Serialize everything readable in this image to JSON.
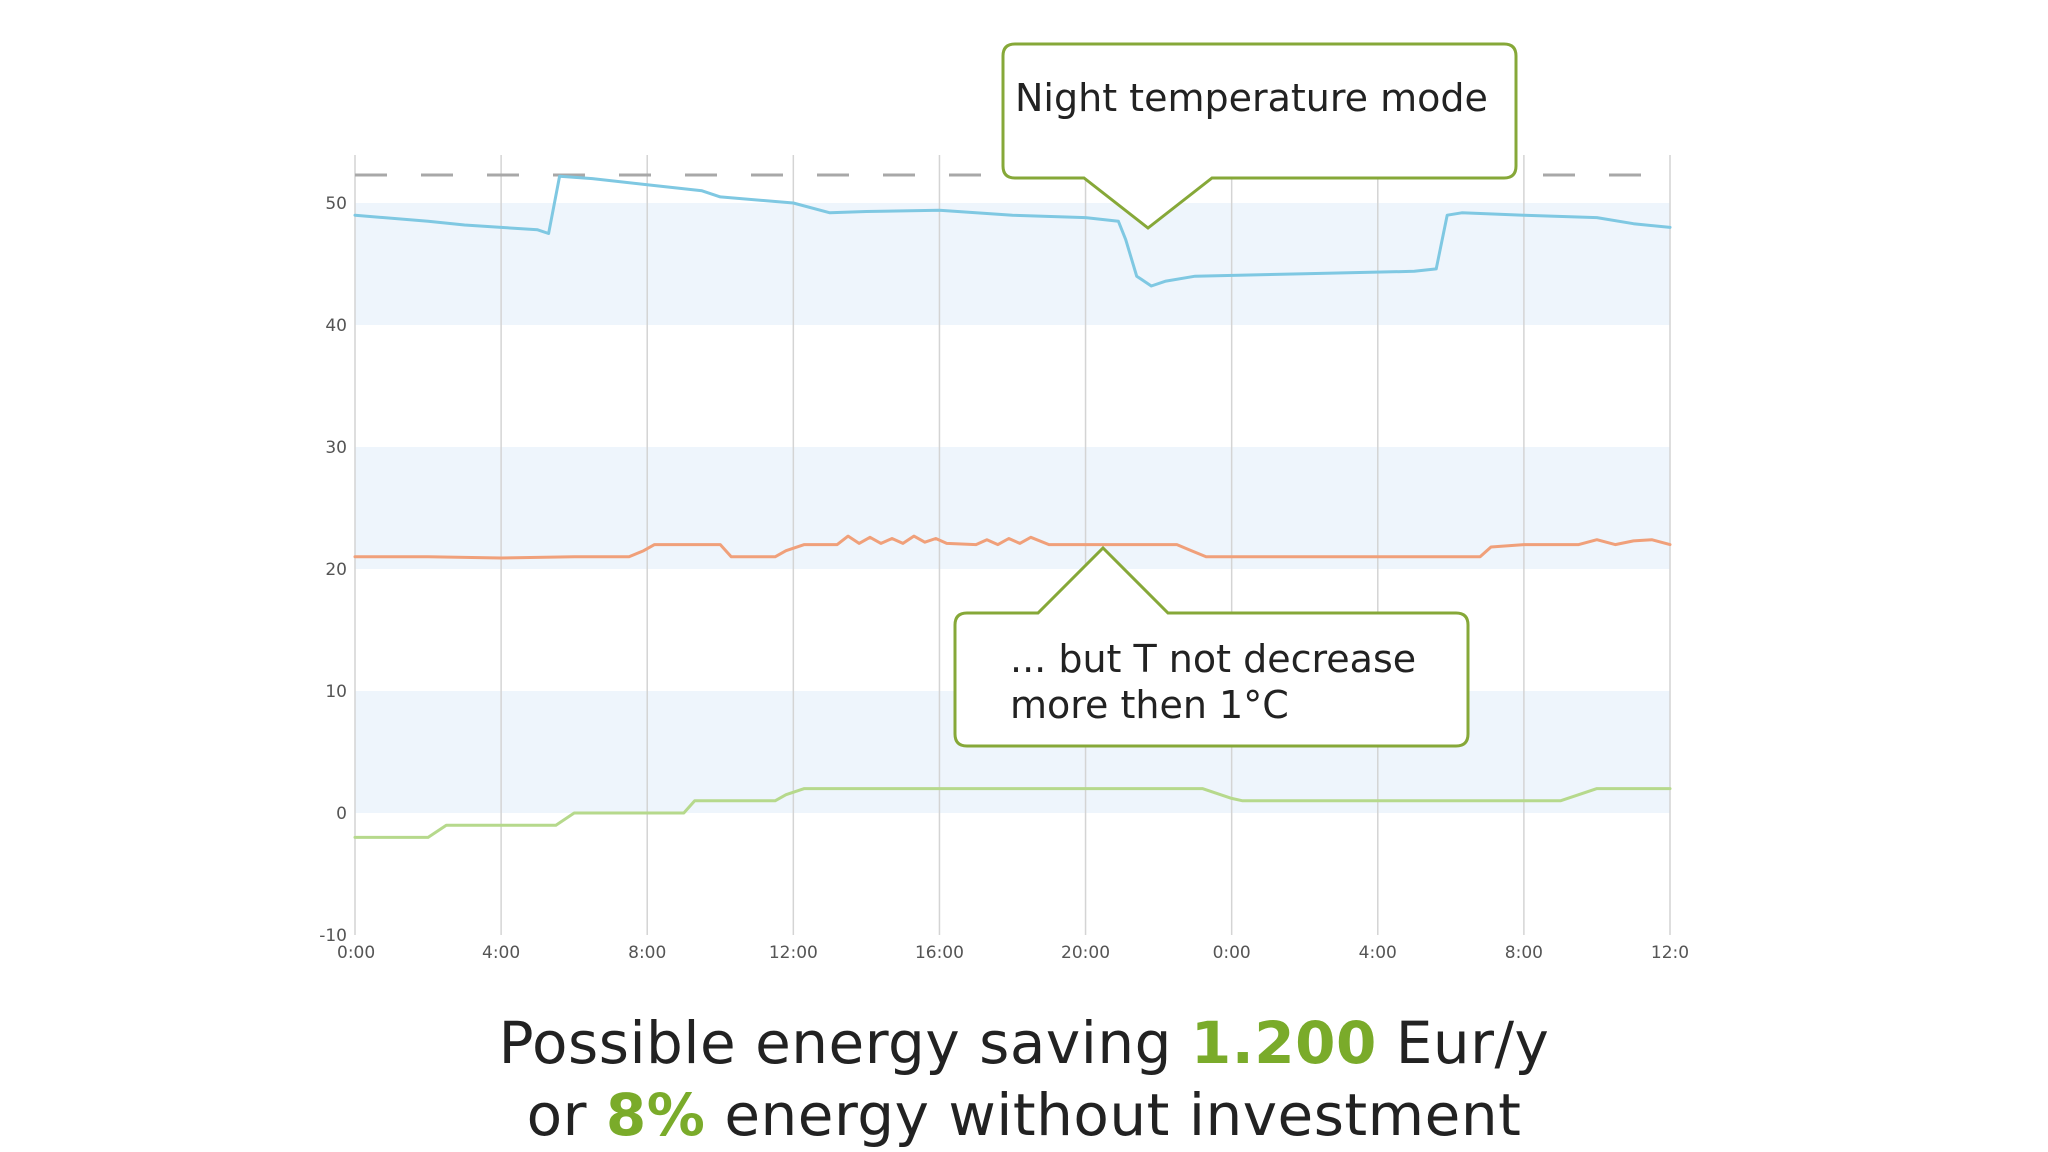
{
  "chart_data": {
    "type": "line",
    "x_ticks": [
      "0:00",
      "4:00",
      "8:00",
      "12:00",
      "16:00",
      "20:00",
      "0:00",
      "4:00",
      "8:00",
      "12:0"
    ],
    "y_ticks": [
      "50",
      "40",
      "30",
      "20",
      "10",
      "0",
      "-10"
    ],
    "xlim_hours": [
      0,
      36
    ],
    "ylim": [
      -10,
      55
    ],
    "grid": true,
    "reference_line": 52.3,
    "bands": [
      [
        40,
        50
      ],
      [
        20,
        30
      ],
      [
        0,
        10
      ]
    ],
    "series": [
      {
        "color": "#7fc8e2",
        "x": [
          0,
          2,
          3,
          4,
          5,
          5.3,
          5.6,
          6.5,
          8,
          9.5,
          10,
          12,
          13,
          14,
          16,
          18,
          20,
          20.9,
          21.1,
          21.4,
          21.8,
          22.2,
          23,
          26,
          29,
          29.6,
          29.9,
          30.3,
          32,
          34,
          35,
          36
        ],
        "y": [
          49,
          48.5,
          48.2,
          48,
          47.8,
          47.5,
          52.2,
          52,
          51.5,
          51,
          50.5,
          50,
          49.2,
          49.3,
          49.4,
          49,
          48.8,
          48.5,
          47,
          44,
          43.2,
          43.6,
          44,
          44.2,
          44.4,
          44.6,
          49,
          49.2,
          49,
          48.8,
          48.3,
          48
        ]
      },
      {
        "color": "#f0a07a",
        "x": [
          0,
          2,
          4,
          6,
          7.5,
          7.9,
          8.2,
          9,
          10,
          10.3,
          11.5,
          11.8,
          12.3,
          13.2,
          13.5,
          13.8,
          14.1,
          14.4,
          14.7,
          15,
          15.3,
          15.6,
          15.9,
          16.2,
          17,
          17.3,
          17.6,
          17.9,
          18.2,
          18.5,
          19,
          21,
          22.5,
          22.9,
          23.3,
          26,
          30,
          30.8,
          31.1,
          32,
          33,
          33.5,
          34,
          34.5,
          35,
          35.5,
          36
        ],
        "y": [
          21,
          21,
          20.9,
          21,
          21,
          21.5,
          22,
          22,
          22,
          21,
          21,
          21.5,
          22,
          22,
          22.7,
          22.1,
          22.6,
          22.1,
          22.5,
          22.1,
          22.7,
          22.2,
          22.5,
          22.1,
          22,
          22.4,
          22,
          22.5,
          22.1,
          22.6,
          22,
          22,
          22,
          21.5,
          21,
          21,
          21,
          21,
          21.8,
          22,
          22,
          22,
          22.4,
          22,
          22.3,
          22.4,
          22
        ]
      },
      {
        "color": "#b6d98c",
        "x": [
          0,
          1.2,
          2,
          2.5,
          3.5,
          5.5,
          6,
          7,
          9,
          9.3,
          10,
          11,
          11.5,
          11.8,
          12.3,
          14,
          16,
          18,
          20,
          22,
          23.2,
          24,
          24.3,
          26,
          28,
          30,
          31,
          33,
          33.5,
          34,
          36
        ],
        "y": [
          -2,
          -2,
          -2,
          -1,
          -1,
          -1,
          0,
          0,
          0,
          1,
          1,
          1,
          1,
          1.5,
          2,
          2,
          2,
          2,
          2,
          2,
          2,
          1.2,
          1,
          1,
          1,
          1,
          1,
          1,
          1.5,
          2,
          2
        ]
      }
    ]
  },
  "callouts": {
    "night_mode": "Night temperature mode",
    "temp_line1": "... but T not decrease",
    "temp_line2": "more then 1°C"
  },
  "caption": {
    "line1_pre": "Possible energy saving ",
    "line1_value": "1.200",
    "line1_post": " Eur/y",
    "line2_pre": "or ",
    "line2_value": "8%",
    "line2_post": " energy without investment"
  },
  "colors": {
    "accent": "#7aab2a",
    "callout_border": "#86a838",
    "band": "#eef5fc",
    "grid": "#d4d4d4",
    "reference": "#a8a8a8"
  }
}
